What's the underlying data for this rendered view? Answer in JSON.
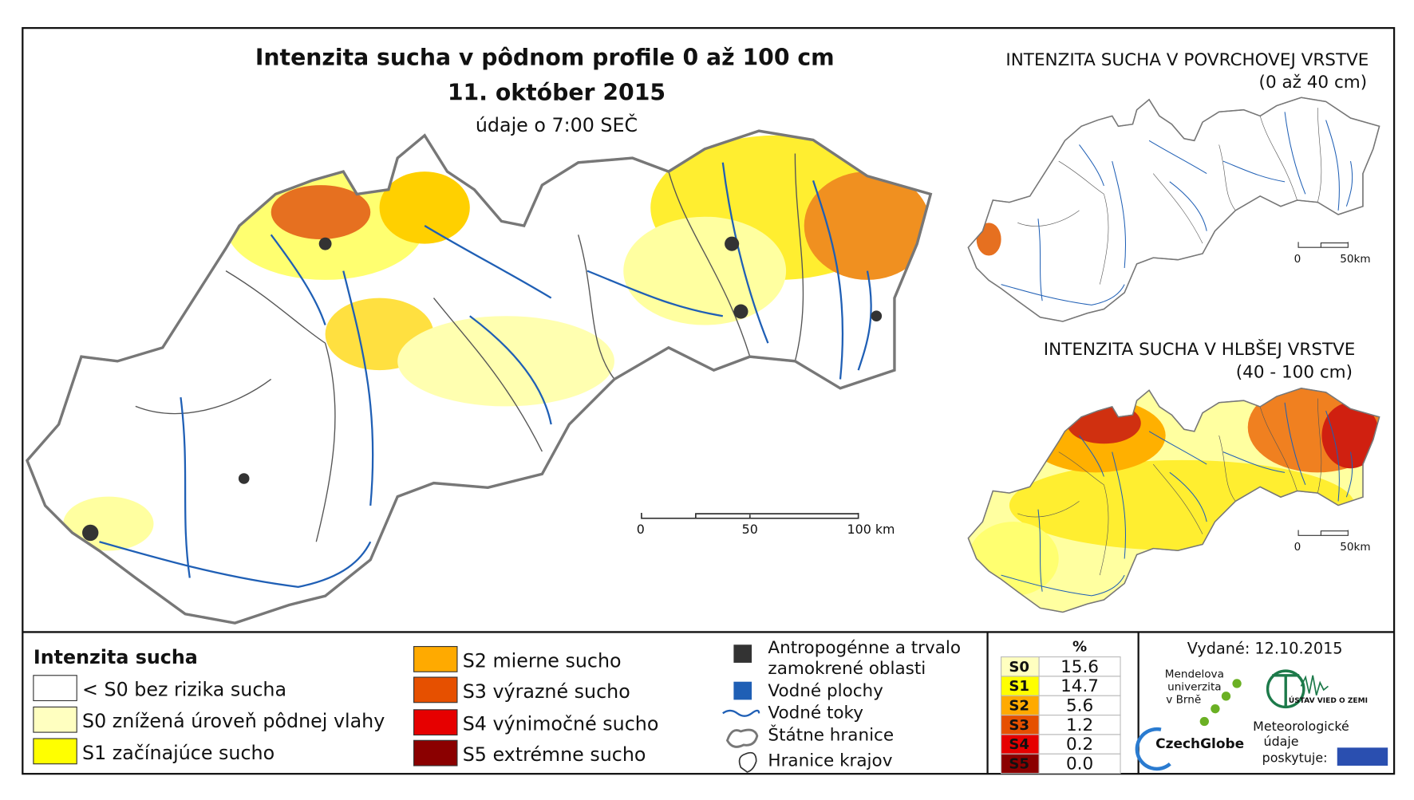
{
  "main_map": {
    "title": "Intenzita sucha v pôdnom profile 0 až 100 cm",
    "date": "11. október 2015",
    "subtitle": "údaje o 7:00 SEČ",
    "scale_labels": [
      "0",
      "50",
      "100 km"
    ]
  },
  "insets": [
    {
      "title": "INTENZITA SUCHA V POVRCHOVEJ VRSTVE",
      "subtitle": "(0 až 40 cm)",
      "scale_labels": [
        "0",
        "50km"
      ]
    },
    {
      "title": "INTENZITA SUCHA V HLBŠEJ VRSTVE",
      "subtitle": "(40 - 100 cm)",
      "scale_labels": [
        "0",
        "50km"
      ]
    }
  ],
  "legend": {
    "title": "Intenzita sucha",
    "items": [
      {
        "label": "< S0 bez rizika sucha",
        "color": "#ffffff"
      },
      {
        "label": "S0 znížená úroveň pôdnej vlahy",
        "color": "#ffffc0"
      },
      {
        "label": "S1 začínajúce sucho",
        "color": "#ffff00"
      },
      {
        "label": "S2 mierne sucho",
        "color": "#ffaa00"
      },
      {
        "label": "S3 výrazné sucho",
        "color": "#e65000"
      },
      {
        "label": "S4 výnimočné sucho",
        "color": "#e60000"
      },
      {
        "label": "S5 extrémne sucho",
        "color": "#8b0000"
      }
    ]
  },
  "symbols": [
    {
      "lines": [
        "Antropogénne a trvalo",
        "zamokrené oblasti"
      ]
    },
    {
      "lines": [
        "Vodné plochy"
      ]
    },
    {
      "lines": [
        "Vodné toky"
      ]
    },
    {
      "lines": [
        "Štátne hranice"
      ]
    },
    {
      "lines": [
        "Hranice krajov"
      ]
    }
  ],
  "stats": {
    "header": "%",
    "rows": [
      {
        "class": "S0",
        "value": "15.6"
      },
      {
        "class": "S1",
        "value": "14.7"
      },
      {
        "class": "S2",
        "value": "5.6"
      },
      {
        "class": "S3",
        "value": "1.2"
      },
      {
        "class": "S4",
        "value": "0.2"
      },
      {
        "class": "S5",
        "value": "0.0"
      }
    ]
  },
  "issued": "Vydané: 12.10.2015",
  "logos": {
    "mendel": [
      "Mendelova",
      "univerzita",
      "v Brně"
    ],
    "czechglobe": "CzechGlobe",
    "ustav": "ÚSTAV VIED O ZEMI",
    "meteo": [
      "Meteorologické",
      "údaje",
      "poskytuje:"
    ]
  }
}
